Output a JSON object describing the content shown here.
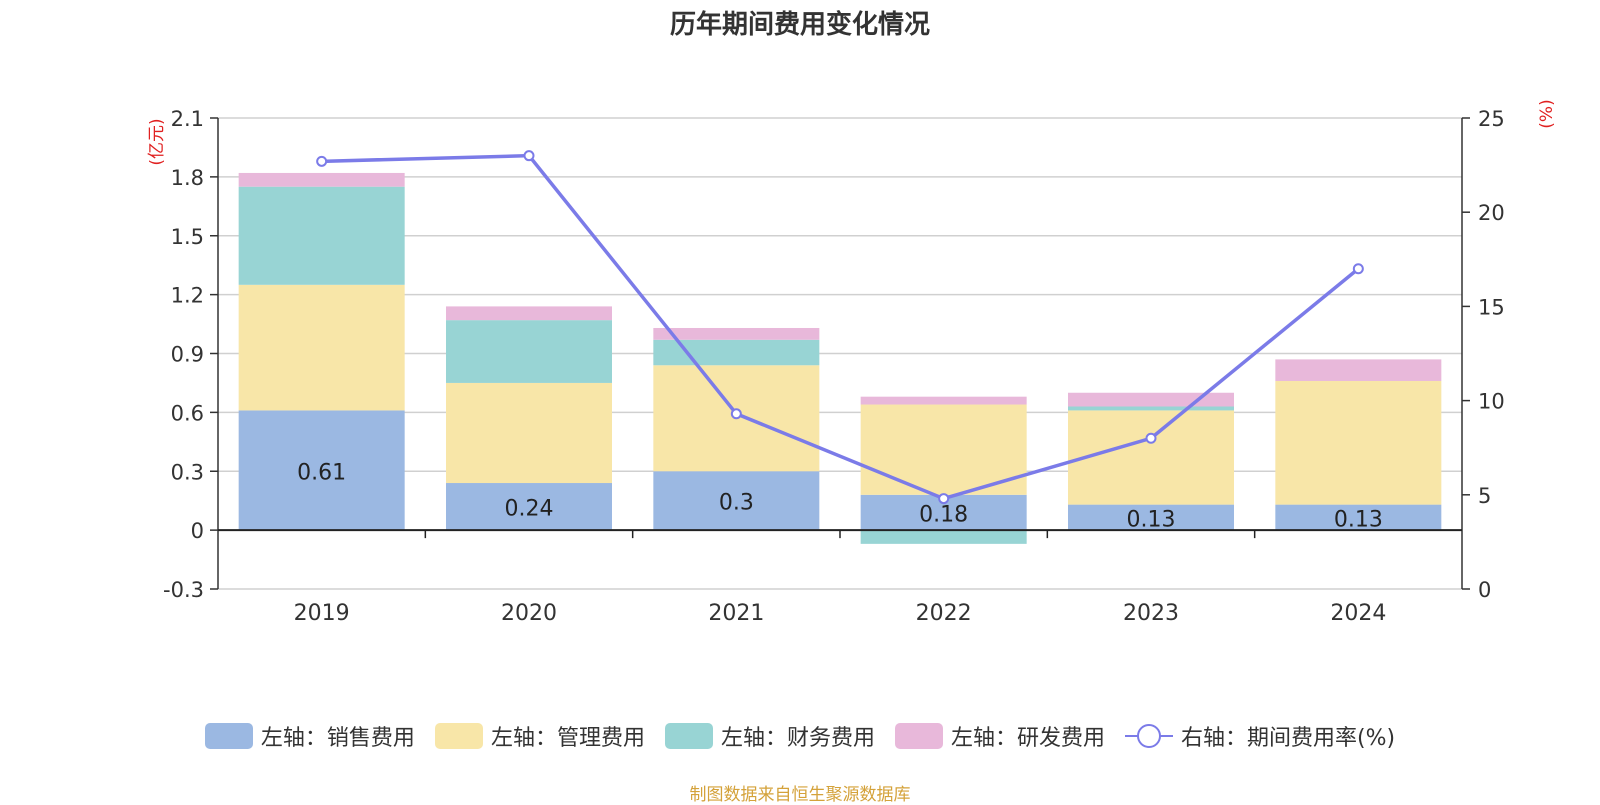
{
  "title": "历年期间费用变化情况",
  "source": "制图数据来自恒生聚源数据库",
  "colors": {
    "sales": "#9bb8e2",
    "admin": "#f8e6a8",
    "finance": "#98d4d4",
    "rnd": "#e8b8da",
    "rate": "#7b7be8",
    "axis_unit": "#e02020"
  },
  "chart_data": {
    "type": "bar",
    "stacked": true,
    "categories": [
      "2019",
      "2020",
      "2021",
      "2022",
      "2023",
      "2024"
    ],
    "left_axis": {
      "unit_label": "(亿元)",
      "ylim": [
        -0.3,
        2.1
      ],
      "ticks": [
        -0.3,
        0,
        0.3,
        0.6,
        0.9,
        1.2,
        1.5,
        1.8,
        2.1
      ]
    },
    "right_axis": {
      "unit_label": "(%)",
      "ylim": [
        0,
        25
      ],
      "ticks": [
        0,
        5,
        10,
        15,
        20,
        25
      ]
    },
    "series": [
      {
        "key": "sales",
        "name": "左轴：销售费用",
        "values": [
          0.61,
          0.24,
          0.3,
          0.18,
          0.13,
          0.13
        ],
        "labels": [
          "0.61",
          "0.24",
          "0.3",
          "0.18",
          "0.13",
          "0.13"
        ]
      },
      {
        "key": "admin",
        "name": "左轴：管理费用",
        "values": [
          0.64,
          0.51,
          0.54,
          0.46,
          0.48,
          0.63
        ]
      },
      {
        "key": "finance",
        "name": "左轴：财务费用",
        "values": [
          0.5,
          0.32,
          0.13,
          -0.07,
          0.02,
          0.0
        ]
      },
      {
        "key": "rnd",
        "name": "左轴：研发费用",
        "values": [
          0.07,
          0.07,
          0.06,
          0.04,
          0.07,
          0.11
        ]
      }
    ],
    "line": {
      "name": "右轴：期间费用率(%)",
      "axis": "right",
      "values": [
        22.7,
        23.0,
        9.3,
        4.8,
        8.0,
        17.0
      ]
    },
    "grid": true,
    "legend_position": "bottom"
  }
}
